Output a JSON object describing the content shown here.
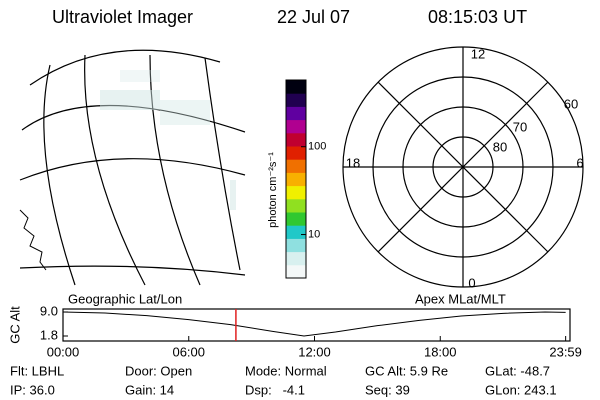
{
  "header": {
    "title": "Ultraviolet Imager",
    "date": "22 Jul 07",
    "time": "08:15:03 UT"
  },
  "colorbar": {
    "label": "photon cm⁻²s⁻¹",
    "log": true,
    "lim": [
      3.2,
      575
    ],
    "ticks": [
      10,
      100
    ],
    "colors": [
      "#f4f8f8",
      "#d8f0ef",
      "#8fe0e0",
      "#20c8c8",
      "#30c830",
      "#90e020",
      "#f0f000",
      "#f8b000",
      "#f07000",
      "#e02000",
      "#c00030",
      "#b00090",
      "#6000a0",
      "#200050",
      "#000010"
    ]
  },
  "polar": {
    "mlt_labels": [
      "12",
      "6",
      "0",
      "18"
    ],
    "lat_labels": [
      "60",
      "70",
      "80"
    ]
  },
  "timeline": {
    "left_label": "Geographic Lat/Lon",
    "right_label": "Apex MLat/MLT",
    "y_label": "GC Alt",
    "ylim": [
      1.8,
      9.0
    ],
    "yticks": [
      {
        "value": 9.0,
        "label": "9.0"
      },
      1.8
    ],
    "xlim": [
      0,
      24
    ],
    "xticks": [
      {
        "value": 0,
        "label": "00:00"
      },
      {
        "value": 6,
        "label": "06:00"
      },
      {
        "value": 12,
        "label": "12:00"
      },
      {
        "value": 18,
        "label": "18:00"
      },
      {
        "value": 23.983,
        "label": "23:59"
      }
    ],
    "x": [
      0,
      2,
      4,
      6,
      8,
      10,
      11.5,
      13,
      15,
      17,
      19,
      21,
      23,
      23.983
    ],
    "values": [
      9.0,
      8.7,
      7.9,
      6.7,
      5.2,
      3.2,
      1.8,
      3.0,
      4.9,
      6.5,
      7.8,
      8.6,
      9.0,
      8.9
    ],
    "marker": 8.25,
    "marker_color": "#e02020"
  },
  "footer": [
    [
      "Flt: LBHL",
      "Door: Open",
      "Mode: Normal",
      "GC Alt: 5.9 Re",
      "GLat: -48.7"
    ],
    [
      "IP: 36.0",
      "Gain: 14",
      "Dsp:   -4.1",
      "Seq: 39",
      "GLon: 243.1"
    ]
  ]
}
